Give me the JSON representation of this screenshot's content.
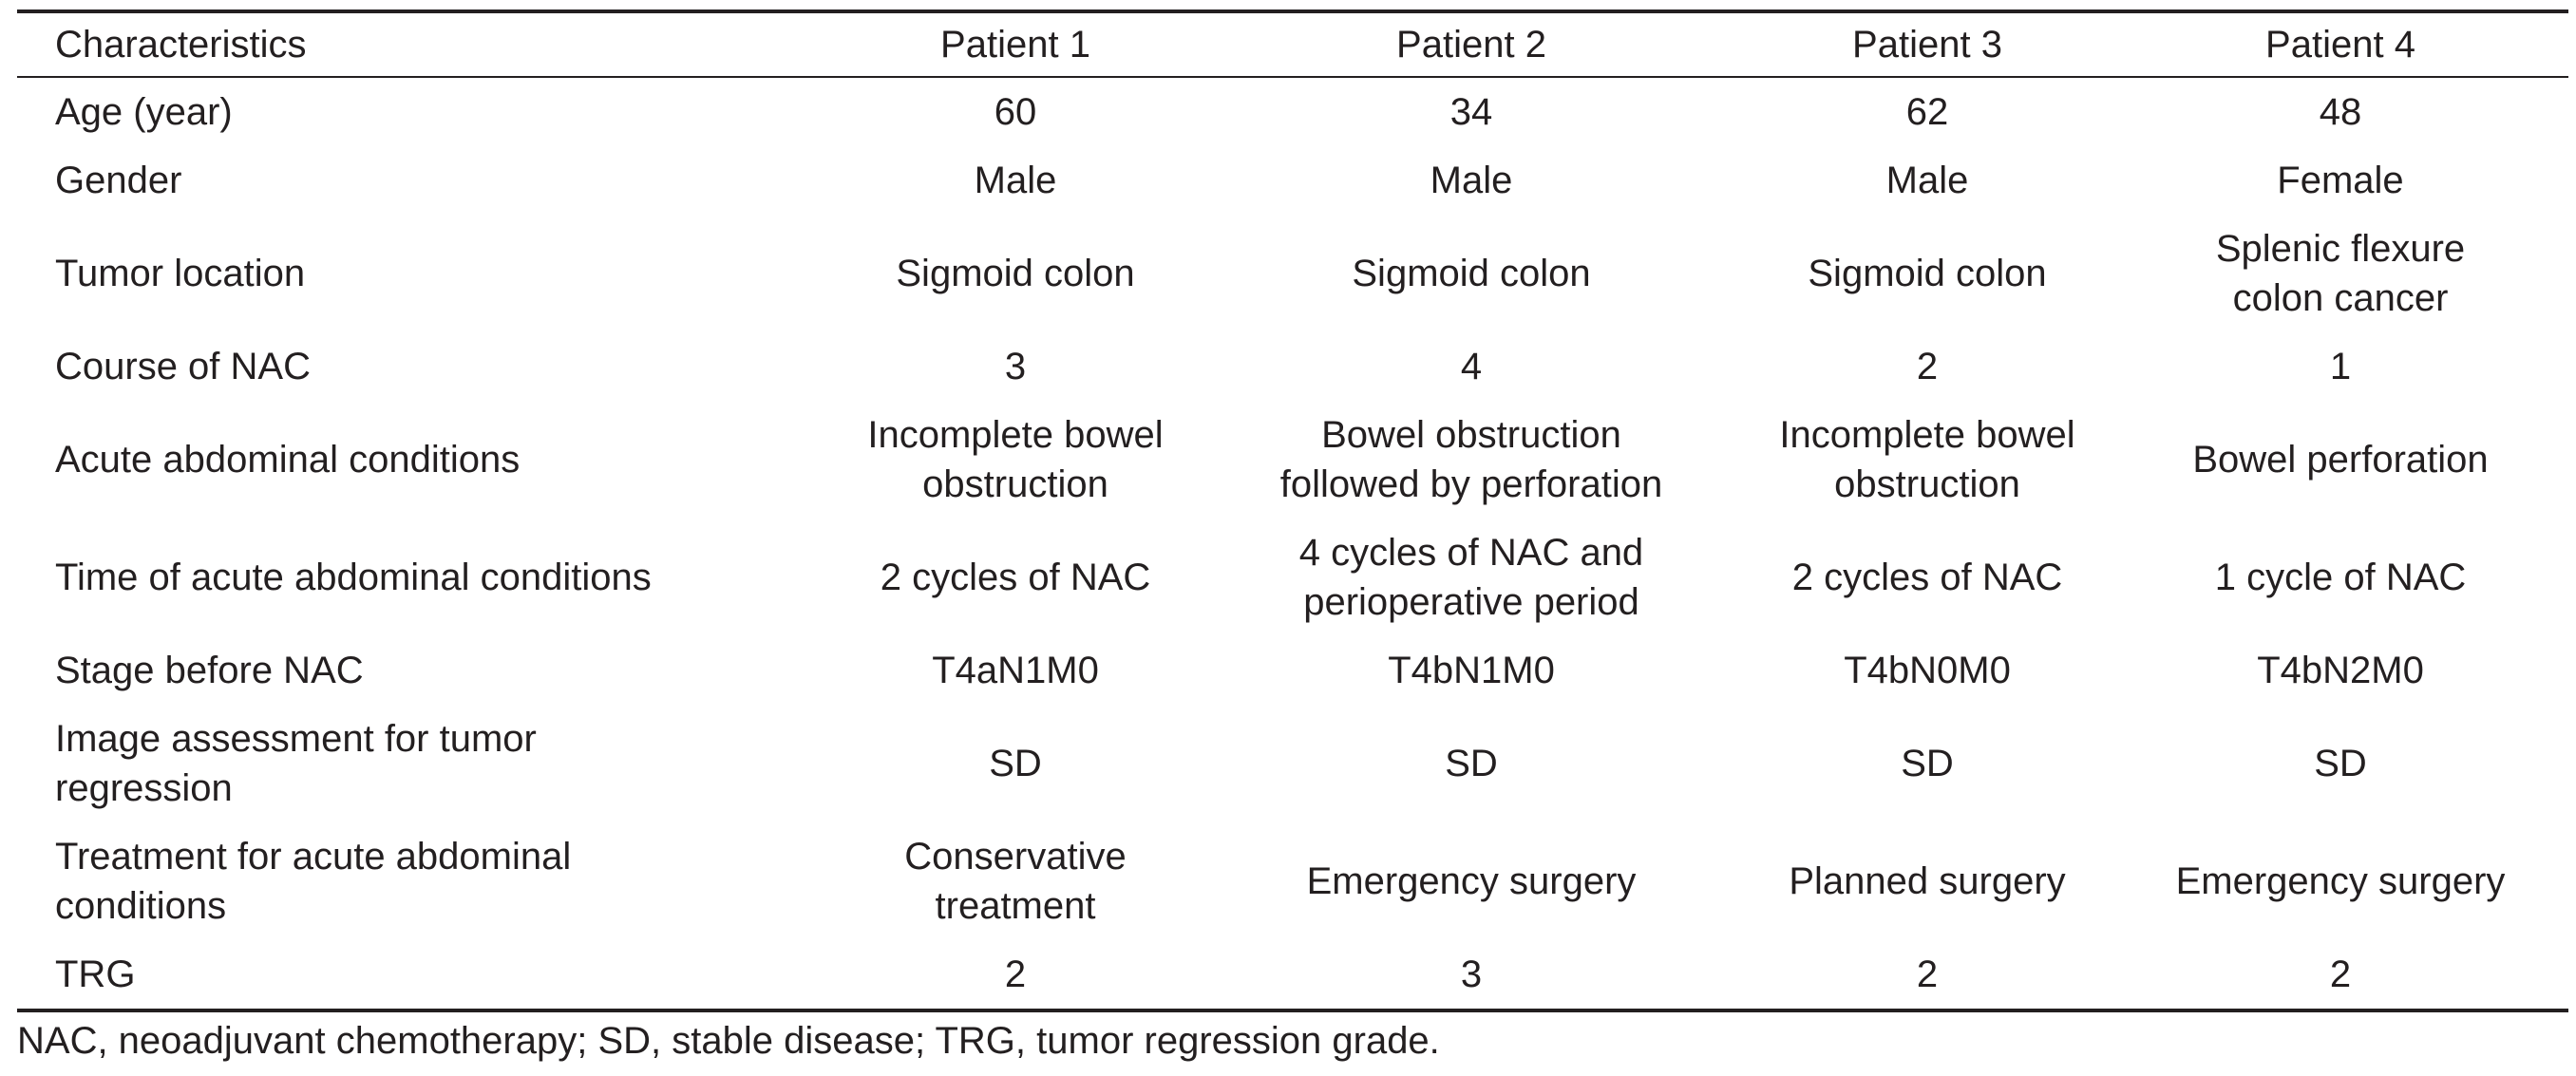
{
  "table": {
    "columns": [
      "Characteristics",
      "Patient 1",
      "Patient 2",
      "Patient 3",
      "Patient 4"
    ],
    "rows": [
      {
        "label": "Age (year)",
        "values": [
          "60",
          "34",
          "62",
          "48"
        ]
      },
      {
        "label": "Gender",
        "values": [
          "Male",
          "Male",
          "Male",
          "Female"
        ]
      },
      {
        "label": "Tumor location",
        "values": [
          "Sigmoid colon",
          "Sigmoid colon",
          "Sigmoid colon",
          "Splenic flexure\ncolon cancer"
        ]
      },
      {
        "label": "Course of NAC",
        "values": [
          "3",
          "4",
          "2",
          "1"
        ]
      },
      {
        "label": "Acute abdominal conditions",
        "values": [
          "Incomplete bowel\nobstruction",
          "Bowel obstruction\nfollowed by perforation",
          "Incomplete bowel\nobstruction",
          "Bowel perforation"
        ]
      },
      {
        "label": "Time of acute abdominal conditions",
        "values": [
          "2 cycles of NAC",
          "4 cycles of NAC and\nperioperative period",
          "2 cycles of NAC",
          "1 cycle of NAC"
        ]
      },
      {
        "label": "Stage before NAC",
        "values": [
          "T4aN1M0",
          "T4bN1M0",
          "T4bN0M0",
          "T4bN2M0"
        ]
      },
      {
        "label": "Image assessment for tumor\nregression",
        "values": [
          "SD",
          "SD",
          "SD",
          "SD"
        ]
      },
      {
        "label": "Treatment for acute abdominal\nconditions",
        "values": [
          "Conservative\ntreatment",
          "Emergency surgery",
          "Planned surgery",
          "Emergency surgery"
        ]
      },
      {
        "label": "TRG",
        "values": [
          "2",
          "3",
          "2",
          "2"
        ]
      }
    ]
  },
  "footnote": "NAC, neoadjuvant chemotherapy; SD, stable disease; TRG, tumor regression grade."
}
